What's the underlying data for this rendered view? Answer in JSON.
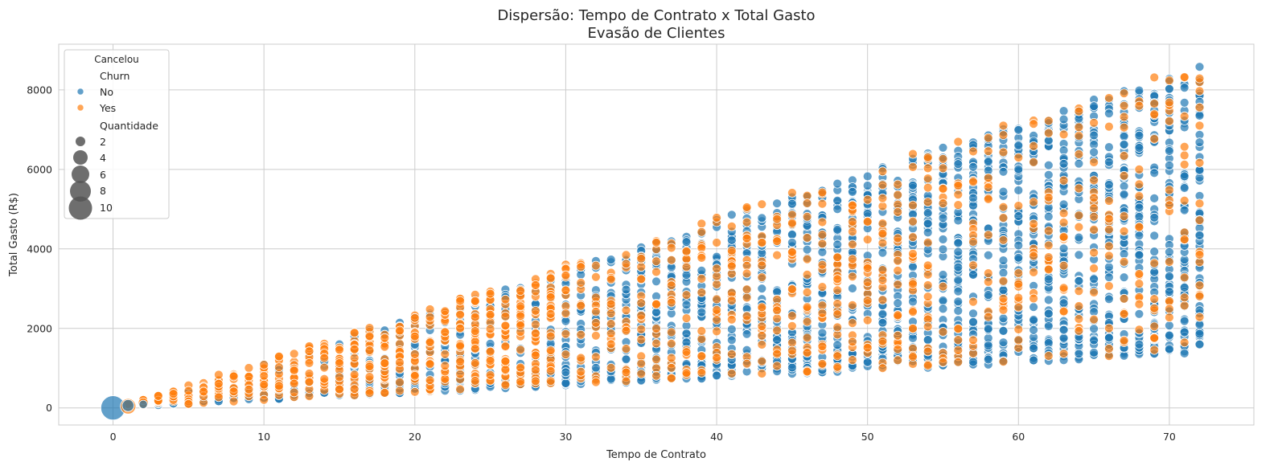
{
  "chart_data": {
    "type": "scatter",
    "title": "Dispersão: Tempo de Contrato x Total Gasto",
    "subtitle": "Evasão de Clientes",
    "xlabel": "Tempo de Contrato",
    "ylabel": "Total Gasto (R$)",
    "xlim": [
      -3.6,
      75.6
    ],
    "ylim": [
      -430,
      9150
    ],
    "xticks": [
      0,
      10,
      20,
      30,
      40,
      50,
      60,
      70
    ],
    "yticks": [
      0,
      2000,
      4000,
      6000,
      8000
    ],
    "grid": true,
    "legend": {
      "placement": "top-left",
      "title": "Cancelou",
      "hue_title": "Churn",
      "hue_entries": [
        "No",
        "Yes"
      ],
      "size_title": "Quantidade",
      "size_entries": [
        "2",
        "4",
        "6",
        "8",
        "10"
      ]
    },
    "colors": {
      "No": "#1f77b4",
      "Yes": "#ff7f0e"
    },
    "series": [
      {
        "name": "No",
        "color": "#1f77b4",
        "description": "non-churned customers spread across all tenures 0-72 months"
      },
      {
        "name": "Yes",
        "color": "#ff7f0e",
        "description": "churned customers concentrated at low-to-mid tenure"
      }
    ],
    "highlight_points": [
      {
        "x": 0,
        "y": 0,
        "series": "No",
        "quantidade": 11
      },
      {
        "x": 1,
        "y": 40,
        "series": "Yes",
        "quantidade": 6
      },
      {
        "x": 1,
        "y": 60,
        "series": "No",
        "quantidade": 4
      },
      {
        "x": 2,
        "y": 120,
        "series": "Yes",
        "quantidade": 3
      },
      {
        "x": 2,
        "y": 90,
        "series": "No",
        "quantidade": 2
      }
    ],
    "bands": {
      "No": [
        {
          "x0": 1,
          "x1": 72,
          "low0": 20,
          "low1": 1350,
          "high0": 120,
          "high1": 2000,
          "density": 0.9
        },
        {
          "x0": 4,
          "x1": 72,
          "low0": 80,
          "low1": 1900,
          "high0": 400,
          "high1": 8600,
          "density": 1
        }
      ],
      "Yes": [
        {
          "x0": 1,
          "x1": 72,
          "low0": 20,
          "low1": 1400,
          "high0": 110,
          "high1": 8700,
          "density": 1
        }
      ]
    }
  }
}
